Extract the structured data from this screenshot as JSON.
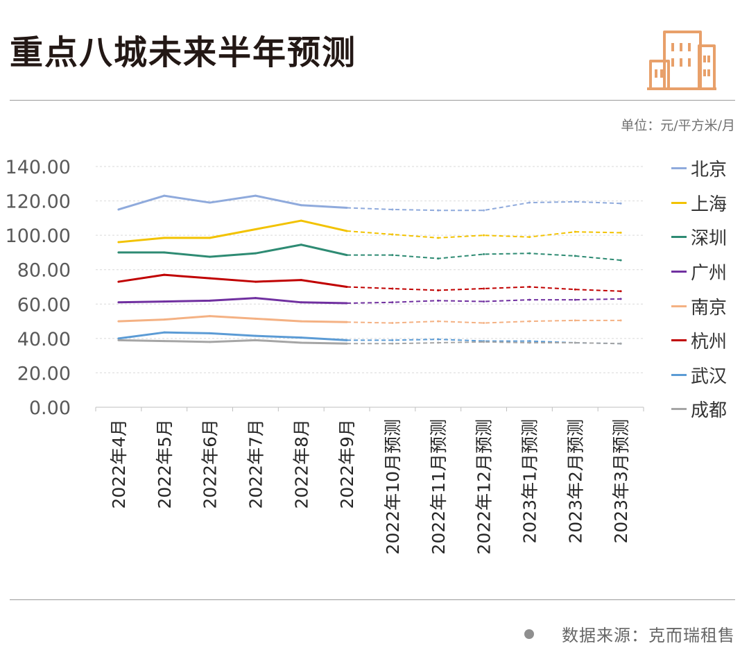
{
  "header": {
    "title": "重点八城未来半年预测",
    "unit": "单位：元/平方米/月",
    "source_label": "数据来源：克而瑞租售"
  },
  "logo": {
    "icon": "buildings-icon",
    "color": "#E8A06A"
  },
  "chart_data": {
    "type": "line",
    "title": "重点八城未来半年预测",
    "ylabel": "元/平方米/月",
    "ylim": [
      0,
      140
    ],
    "yticks": [
      "0.00",
      "20.00",
      "40.00",
      "60.00",
      "80.00",
      "100.00",
      "120.00",
      "140.00"
    ],
    "grid": true,
    "legend_position": "right",
    "categories": [
      "2022年4月",
      "2022年5月",
      "2022年6月",
      "2022年7月",
      "2022年8月",
      "2022年9月",
      "2022年10月预测",
      "2022年11月预测",
      "2022年12月预测",
      "2023年1月预测",
      "2023年2月预测",
      "2023年3月预测"
    ],
    "forecast_start_index": 5,
    "series": [
      {
        "name": "北京",
        "color": "#8FAADC",
        "values": [
          115,
          123,
          119,
          123,
          117.5,
          116,
          115,
          114.5,
          114.5,
          119,
          119.5,
          118.5
        ]
      },
      {
        "name": "上海",
        "color": "#F2C200",
        "values": [
          96,
          98.5,
          98.5,
          103.5,
          108.5,
          102.5,
          100.5,
          98.5,
          100,
          99,
          102,
          101.5
        ]
      },
      {
        "name": "深圳",
        "color": "#2E8B73",
        "values": [
          90,
          90,
          87.5,
          89.5,
          94.5,
          88.5,
          88.5,
          86.5,
          89,
          89.5,
          88,
          85.5
        ]
      },
      {
        "name": "广州",
        "color": "#7030A0",
        "values": [
          61,
          61.5,
          62,
          63.5,
          61,
          60.5,
          61,
          62,
          61.5,
          62.5,
          62.5,
          63
        ]
      },
      {
        "name": "南京",
        "color": "#F4B183",
        "values": [
          50,
          51,
          53,
          51.5,
          50,
          49.5,
          49,
          50,
          49,
          50,
          50.5,
          50.5
        ]
      },
      {
        "name": "杭州",
        "color": "#C00000",
        "values": [
          73,
          77,
          75,
          73,
          74,
          70,
          69,
          68,
          69,
          70,
          68.5,
          67.5
        ]
      },
      {
        "name": "武汉",
        "color": "#5B9BD5",
        "values": [
          40,
          43.5,
          43,
          41.5,
          40.5,
          39,
          39,
          39.5,
          38.5,
          38.5,
          37.5,
          37
        ]
      },
      {
        "name": "成都",
        "color": "#A5A5A5",
        "values": [
          39,
          38.5,
          38,
          39,
          37.5,
          37,
          37,
          37.5,
          38,
          37.5,
          37.5,
          37
        ]
      }
    ]
  }
}
